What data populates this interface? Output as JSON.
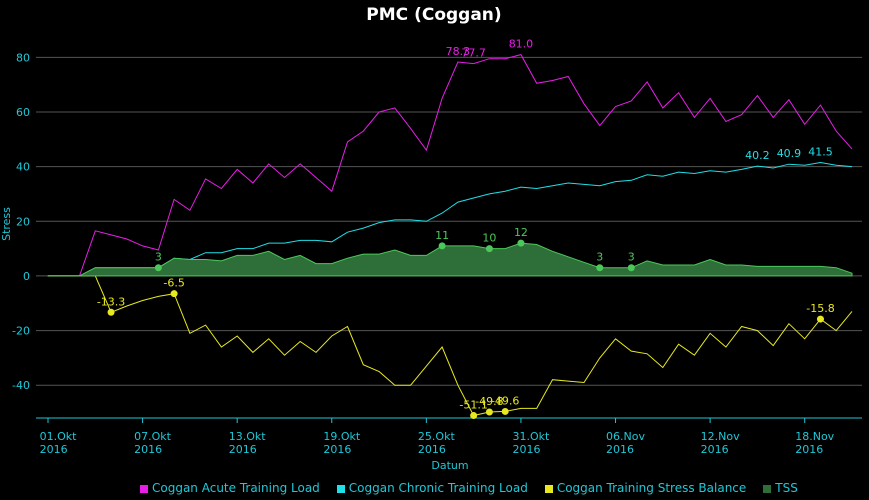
{
  "chart_data": {
    "type": "line",
    "title": "PMC (Coggan)",
    "x_label": "Datum",
    "y_label": "Stress",
    "x": [
      "2016-10-01",
      "2016-10-02",
      "2016-10-03",
      "2016-10-04",
      "2016-10-05",
      "2016-10-06",
      "2016-10-07",
      "2016-10-08",
      "2016-10-09",
      "2016-10-10",
      "2016-10-11",
      "2016-10-12",
      "2016-10-13",
      "2016-10-14",
      "2016-10-15",
      "2016-10-16",
      "2016-10-17",
      "2016-10-18",
      "2016-10-19",
      "2016-10-20",
      "2016-10-21",
      "2016-10-22",
      "2016-10-23",
      "2016-10-24",
      "2016-10-25",
      "2016-10-26",
      "2016-10-27",
      "2016-10-28",
      "2016-10-29",
      "2016-10-30",
      "2016-10-31",
      "2016-11-01",
      "2016-11-02",
      "2016-11-03",
      "2016-11-04",
      "2016-11-05",
      "2016-11-06",
      "2016-11-07",
      "2016-11-08",
      "2016-11-09",
      "2016-11-10",
      "2016-11-11",
      "2016-11-12",
      "2016-11-13",
      "2016-11-14",
      "2016-11-15",
      "2016-11-16",
      "2016-11-17",
      "2016-11-18",
      "2016-11-19",
      "2016-11-20",
      "2016-11-21"
    ],
    "xlim": [
      "2016-10-01",
      "2016-11-21"
    ],
    "xticks": [
      {
        "value": "2016-10-01",
        "label": "01.Okt\n2016"
      },
      {
        "value": "2016-10-07",
        "label": "07.Okt\n2016"
      },
      {
        "value": "2016-10-13",
        "label": "13.Okt\n2016"
      },
      {
        "value": "2016-10-19",
        "label": "19.Okt\n2016"
      },
      {
        "value": "2016-10-25",
        "label": "25.Okt\n2016"
      },
      {
        "value": "2016-10-31",
        "label": "31.Okt\n2016"
      },
      {
        "value": "2016-11-06",
        "label": "06.Nov\n2016"
      },
      {
        "value": "2016-11-12",
        "label": "12.Nov\n2016"
      },
      {
        "value": "2016-11-18",
        "label": "18.Nov\n2016"
      }
    ],
    "ylim": [
      -52,
      90
    ],
    "yticks": [
      -40,
      -20,
      0,
      20,
      40,
      60,
      80
    ],
    "grid": true,
    "legend": "bottom",
    "series": [
      {
        "name": "Coggan Acute Training Load",
        "color": "#e81ee8",
        "kind": "line",
        "point_markers": false,
        "values": [
          0,
          0,
          0,
          16.5,
          15,
          13.5,
          11,
          9.5,
          28,
          24,
          35.5,
          32,
          39,
          34,
          41,
          36,
          41,
          36,
          31,
          49,
          53,
          60,
          61.5,
          54,
          46,
          65,
          78.3,
          77.7,
          79.5,
          79.5,
          81,
          70.5,
          71.5,
          73,
          63,
          55,
          62,
          64,
          71,
          61.5,
          67,
          58,
          65,
          56.5,
          59,
          66,
          58,
          64.5,
          55.5,
          62.5,
          53,
          46.5
        ],
        "value_labels": [
          null,
          null,
          null,
          null,
          null,
          null,
          null,
          null,
          null,
          null,
          null,
          null,
          null,
          null,
          null,
          null,
          null,
          null,
          null,
          null,
          null,
          null,
          null,
          null,
          null,
          null,
          "78.3",
          "77.7",
          null,
          null,
          "81.0",
          null,
          null,
          null,
          null,
          null,
          null,
          null,
          null,
          null,
          null,
          null,
          null,
          null,
          null,
          null,
          null,
          null,
          null,
          null,
          null,
          null
        ]
      },
      {
        "name": "Coggan Chronic Training Load",
        "color": "#1ee0e8",
        "kind": "line",
        "point_markers": false,
        "values": [
          0,
          0,
          0,
          3,
          3,
          3,
          3,
          3,
          6.5,
          6,
          8.5,
          8.5,
          10,
          10,
          12,
          12,
          13,
          13,
          12.5,
          16,
          17.5,
          19.5,
          20.5,
          20.5,
          20,
          23,
          27,
          28.5,
          30,
          31,
          32.5,
          32,
          33,
          34,
          33.5,
          33,
          34.5,
          35,
          37,
          36.5,
          38,
          37.5,
          38.5,
          38,
          39,
          40.2,
          39.5,
          40.9,
          40.5,
          41.5,
          40.5,
          40
        ],
        "value_labels": [
          null,
          null,
          null,
          null,
          null,
          null,
          null,
          null,
          null,
          null,
          null,
          null,
          null,
          null,
          null,
          null,
          null,
          null,
          null,
          null,
          null,
          null,
          null,
          null,
          null,
          null,
          null,
          null,
          null,
          null,
          null,
          null,
          null,
          null,
          null,
          null,
          null,
          null,
          null,
          null,
          null,
          null,
          null,
          null,
          null,
          "40.2",
          null,
          "40.9",
          null,
          "41.5",
          null,
          null
        ]
      },
      {
        "name": "Coggan Training Stress Balance",
        "color": "#e8e81e",
        "kind": "line",
        "point_markers": true,
        "values": [
          0,
          0,
          0,
          0,
          -13.3,
          -11,
          -9,
          -7.5,
          -6.5,
          -21,
          -18,
          -26,
          -22,
          -28,
          -23,
          -29,
          -24,
          -28,
          -22,
          -18.5,
          -32.5,
          -35,
          -40,
          -40,
          -33,
          -26,
          -40,
          -51.1,
          -49.8,
          -49.6,
          -48.5,
          -48.5,
          -38,
          -38.5,
          -39,
          -30,
          -23,
          -27.5,
          -28.5,
          -33.5,
          -25,
          -29,
          -21,
          -26,
          -18.5,
          -20,
          -25.5,
          -17.5,
          -23,
          -15.8,
          -20,
          -13
        ],
        "value_labels": [
          null,
          null,
          null,
          null,
          "-13.3",
          null,
          null,
          null,
          "-6.5",
          null,
          null,
          null,
          null,
          null,
          null,
          null,
          null,
          null,
          null,
          null,
          null,
          null,
          null,
          null,
          null,
          null,
          null,
          "-51.1",
          "-49.8",
          "-49.6",
          null,
          null,
          null,
          null,
          null,
          null,
          null,
          null,
          null,
          null,
          null,
          null,
          null,
          null,
          null,
          null,
          null,
          null,
          null,
          "-15.8",
          null,
          null
        ]
      },
      {
        "name": "TSS",
        "color": "#2e6e38",
        "line_color": "#4cc85a",
        "kind": "area",
        "point_markers": true,
        "values": [
          0,
          0,
          0,
          3,
          3,
          3,
          3,
          3,
          6.5,
          6,
          6,
          5.5,
          7.5,
          7.5,
          9,
          6,
          7.5,
          4.5,
          4.5,
          6.5,
          8,
          8,
          9.5,
          7.5,
          7.5,
          11,
          11,
          11,
          10,
          10,
          12,
          11.5,
          9,
          7,
          5,
          3,
          3,
          3,
          5.5,
          4,
          4,
          4,
          6,
          4,
          4,
          3.5,
          3.5,
          3.5,
          3.5,
          3.5,
          3,
          1
        ],
        "value_labels": [
          null,
          null,
          null,
          null,
          null,
          null,
          null,
          "3",
          null,
          null,
          null,
          null,
          null,
          null,
          null,
          null,
          null,
          null,
          null,
          null,
          null,
          null,
          null,
          null,
          null,
          "11",
          null,
          null,
          "10",
          null,
          "12",
          null,
          null,
          null,
          null,
          "3",
          null,
          "3",
          null,
          null,
          null,
          null,
          null,
          null,
          null,
          null,
          null,
          null,
          null,
          null,
          null,
          null
        ]
      }
    ]
  }
}
